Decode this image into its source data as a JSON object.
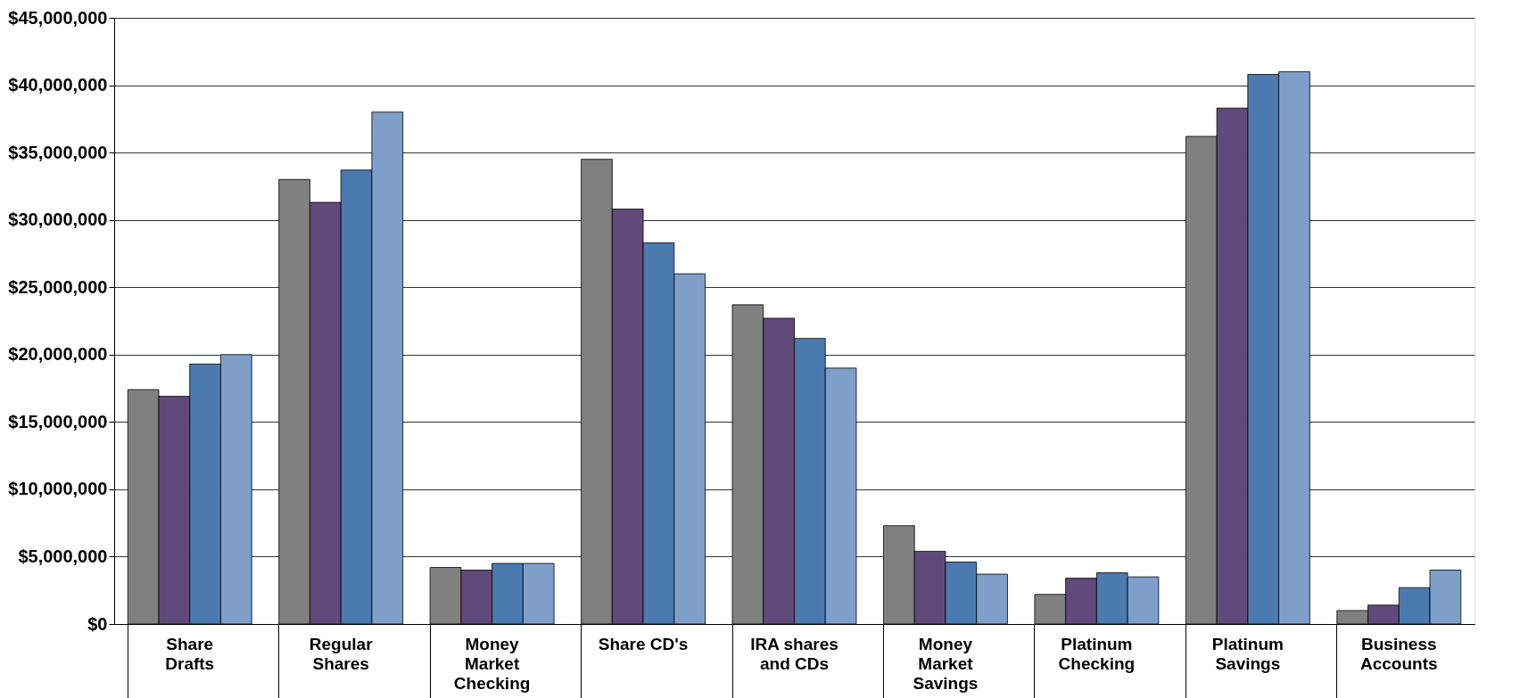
{
  "chart_data": {
    "type": "bar",
    "categories": [
      "Share Drafts",
      "Regular Shares",
      "Money Market Checking",
      "Share CD's",
      "IRA shares and CDs",
      "Money Market Savings",
      "Platinum Checking",
      "Platinum Savings",
      "Business Accounts"
    ],
    "series": [
      {
        "color": "#808080",
        "values": [
          17400000,
          33000000,
          4200000,
          34500000,
          23700000,
          7300000,
          2200000,
          36200000,
          1000000
        ]
      },
      {
        "color": "#604a7b",
        "values": [
          16900000,
          31300000,
          4000000,
          30800000,
          22700000,
          5400000,
          3400000,
          38300000,
          1400000
        ]
      },
      {
        "color": "#4a7ab0",
        "values": [
          19300000,
          33700000,
          4500000,
          28300000,
          21200000,
          4600000,
          3800000,
          40800000,
          2700000
        ]
      },
      {
        "color": "#7f9fcb",
        "values": [
          20000000,
          38000000,
          4500000,
          26000000,
          19000000,
          3700000,
          3500000,
          41000000,
          4000000
        ]
      }
    ],
    "ylim": [
      0,
      45000000
    ],
    "yticks": [
      {
        "value": 0,
        "label": "$0"
      },
      {
        "value": 5000000,
        "label": "$5,000,000"
      },
      {
        "value": 10000000,
        "label": "$10,000,000"
      },
      {
        "value": 15000000,
        "label": "$15,000,000"
      },
      {
        "value": 20000000,
        "label": "$20,000,000"
      },
      {
        "value": 25000000,
        "label": "$25,000,000"
      },
      {
        "value": 30000000,
        "label": "$30,000,000"
      },
      {
        "value": 35000000,
        "label": "$35,000,000"
      },
      {
        "value": 40000000,
        "label": "$40,000,000"
      },
      {
        "value": 45000000,
        "label": "$45,000,000"
      }
    ],
    "grid": "y",
    "legend": false
  }
}
